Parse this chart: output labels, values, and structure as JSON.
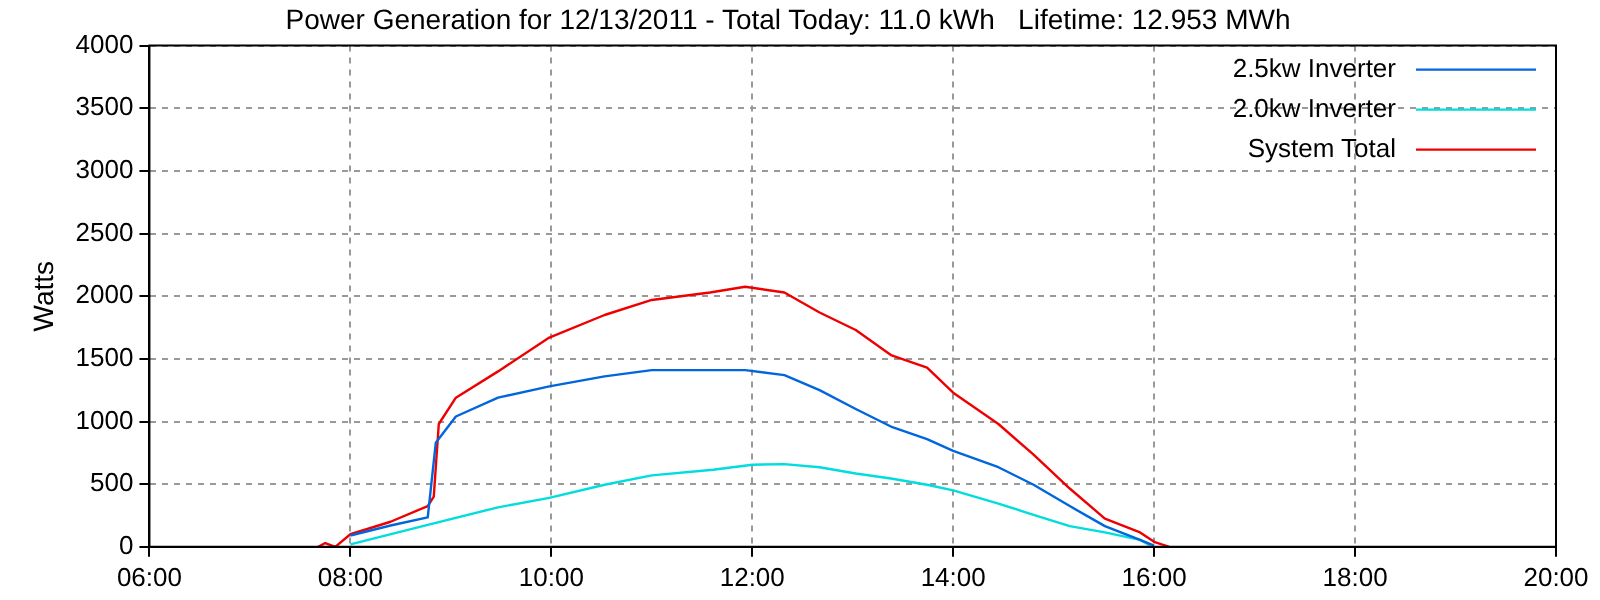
{
  "chart_data": {
    "type": "line",
    "title": "Power Generation for 12/13/2011 - Total Today: 11.0 kWh   Lifetime: 12.953 MWh",
    "ylabel": "Watts",
    "xlim": [
      6,
      20
    ],
    "xticks": [
      {
        "value": 6,
        "label": "06:00"
      },
      {
        "value": 8,
        "label": "08:00"
      },
      {
        "value": 10,
        "label": "10:00"
      },
      {
        "value": 12,
        "label": "12:00"
      },
      {
        "value": 14,
        "label": "14:00"
      },
      {
        "value": 16,
        "label": "16:00"
      },
      {
        "value": 18,
        "label": "18:00"
      },
      {
        "value": 20,
        "label": "20:00"
      }
    ],
    "ylim": [
      0,
      4000
    ],
    "yticks": [
      0,
      500,
      1000,
      1500,
      2000,
      2500,
      3000,
      3500,
      4000
    ],
    "grid": true,
    "legend": "top right",
    "marker": "none",
    "line_style": "solid",
    "series": [
      {
        "name": "2.5kw Inverter",
        "color": "#0066dd",
        "x": [
          8.0,
          8.4,
          8.77,
          8.85,
          9.05,
          9.47,
          9.98,
          10.53,
          11.0,
          11.93,
          12.32,
          12.67,
          13.03,
          13.38,
          13.74,
          14.0,
          14.45,
          14.8,
          15.16,
          15.51,
          15.86,
          16.0
        ],
        "values": [
          90,
          170,
          235,
          830,
          1040,
          1190,
          1280,
          1360,
          1410,
          1410,
          1370,
          1250,
          1100,
          960,
          860,
          765,
          635,
          495,
          325,
          165,
          55,
          10
        ]
      },
      {
        "name": "2.0kw Inverter",
        "color": "#00dddd",
        "x": [
          8.0,
          8.77,
          9.47,
          9.98,
          10.53,
          11.0,
          11.61,
          12.0,
          12.32,
          12.67,
          13.03,
          13.38,
          13.74,
          14.0,
          14.45,
          14.8,
          15.16,
          15.51,
          15.86,
          15.96
        ],
        "values": [
          20,
          175,
          315,
          390,
          495,
          570,
          615,
          655,
          660,
          635,
          585,
          545,
          495,
          450,
          345,
          255,
          165,
          115,
          55,
          10
        ]
      },
      {
        "name": "System Total",
        "color": "#ee0000",
        "x": [
          7.68,
          7.75,
          7.85,
          8.0,
          8.4,
          8.77,
          8.83,
          8.88,
          9.05,
          9.47,
          9.98,
          10.53,
          11.0,
          11.58,
          11.93,
          12.32,
          12.67,
          13.03,
          13.38,
          13.74,
          14.0,
          14.45,
          14.8,
          15.16,
          15.51,
          15.86,
          16.0,
          16.15
        ],
        "values": [
          0,
          30,
          0,
          100,
          200,
          325,
          400,
          980,
          1190,
          1400,
          1670,
          1850,
          1970,
          2030,
          2075,
          2030,
          1870,
          1730,
          1530,
          1430,
          1230,
          980,
          735,
          465,
          225,
          115,
          40,
          0
        ]
      }
    ]
  }
}
